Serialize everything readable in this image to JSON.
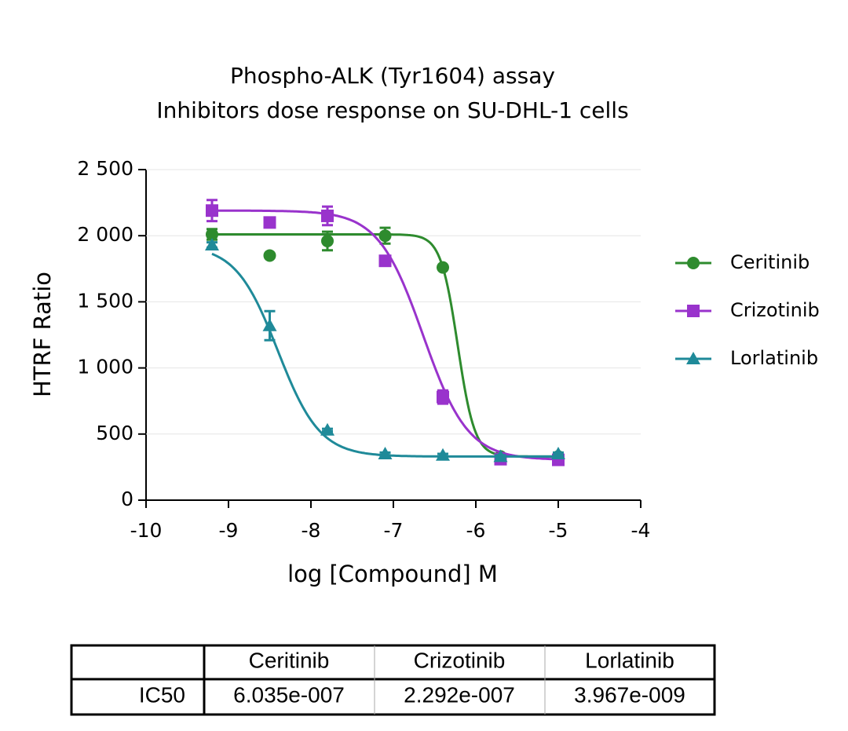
{
  "chart_data": {
    "type": "scatter",
    "title": "Phospho-ALK (Tyr1604) assay",
    "subtitle": "Inhibitors dose response on SU-DHL-1 cells",
    "x_label": "log [Compound] M",
    "y_label": "HTRF Ratio",
    "x": [
      -9.2,
      -8.5,
      -7.8,
      -7.1,
      -6.4,
      -5.7,
      -5.0
    ],
    "series": [
      {
        "name": "Ceritinib",
        "color": "#2e8b2e",
        "marker": "circle",
        "values": [
          2010,
          1850,
          1960,
          2000,
          1760,
          330,
          330
        ],
        "errors": [
          40,
          0,
          70,
          60,
          0,
          20,
          20
        ]
      },
      {
        "name": "Crizotinib",
        "color": "#9933cc",
        "marker": "square",
        "values": [
          2190,
          2100,
          2150,
          1810,
          780,
          310,
          305
        ],
        "errors": [
          80,
          20,
          70,
          30,
          50,
          10,
          10
        ]
      },
      {
        "name": "Lorlatinib",
        "color": "#1f8a99",
        "marker": "triangle",
        "values": [
          1930,
          1320,
          530,
          350,
          340,
          330,
          350
        ],
        "errors": [
          20,
          110,
          10,
          10,
          10,
          10,
          10
        ]
      }
    ],
    "xlim": [
      -10,
      -4
    ],
    "xticks": [
      -10,
      -9,
      -8,
      -7,
      -6,
      -5,
      -4
    ],
    "ylim": [
      0,
      2500
    ],
    "yticks": [
      0,
      500,
      {
        "value": 1000,
        "label": "1 000"
      },
      {
        "value": 1500,
        "label": "1 500"
      },
      {
        "value": 2000,
        "label": "2 000"
      },
      {
        "value": 2500,
        "label": "2 500"
      }
    ],
    "grid": true,
    "legend": "right"
  },
  "table": {
    "columns": [
      "Ceritinib",
      "Crizotinib",
      "Lorlatinib"
    ],
    "rows": [
      [
        "IC50",
        "6.035e-007",
        "2.292e-007",
        "3.967e-009"
      ]
    ]
  }
}
